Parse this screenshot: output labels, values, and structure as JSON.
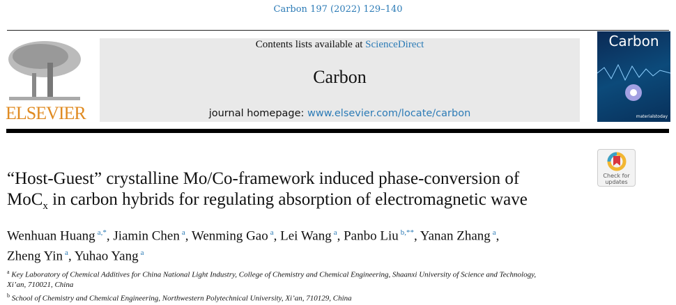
{
  "running_head": "Carbon 197 (2022) 129–140",
  "masthead": {
    "contents_prefix": "Contents lists available at ",
    "contents_link": "ScienceDirect",
    "journal_title": "Carbon",
    "homepage_prefix": "journal homepage: ",
    "homepage_link": "www.elsevier.com/locate/carbon",
    "publisher_logo": "ELSEVIER",
    "cover_title": "Carbon",
    "cover_publisher": "materialstoday"
  },
  "check_updates": {
    "line1": "Check for",
    "line2": "updates"
  },
  "article": {
    "title_line1": "“Host-Guest” crystalline Mo/Co-framework induced phase-conversion of",
    "title_line2_pre": "MoC",
    "title_line2_sub": "x",
    "title_line2_post": " in carbon hybrids for regulating absorption of electromagnetic wave",
    "authors": [
      {
        "name": "Wenhuan Huang",
        "aff": "a,*"
      },
      {
        "name": "Jiamin Chen",
        "aff": "a"
      },
      {
        "name": "Wenming Gao",
        "aff": "a"
      },
      {
        "name": "Lei Wang",
        "aff": "a"
      },
      {
        "name": "Panbo Liu",
        "aff": "b,**"
      },
      {
        "name": "Yanan Zhang",
        "aff": "a"
      },
      {
        "name": "Zheng Yin",
        "aff": "a"
      },
      {
        "name": "Yuhao Yang",
        "aff": "a"
      }
    ],
    "affiliations": [
      {
        "label": "a",
        "text": "Key Laboratory of Chemical Additives for China National Light Industry, College of Chemistry and Chemical Engineering, Shaanxi University of Science and Technology,",
        "text2": "Xi’an, 710021, China"
      },
      {
        "label": "b",
        "text": "School of Chemistry and Chemical Engineering, Northwestern Polytechnical University, Xi’an, 710129, China"
      }
    ]
  },
  "colors": {
    "link": "#2c7bb6",
    "elsevier": "#e08b22",
    "masthead_bg": "#e9e9e9"
  }
}
